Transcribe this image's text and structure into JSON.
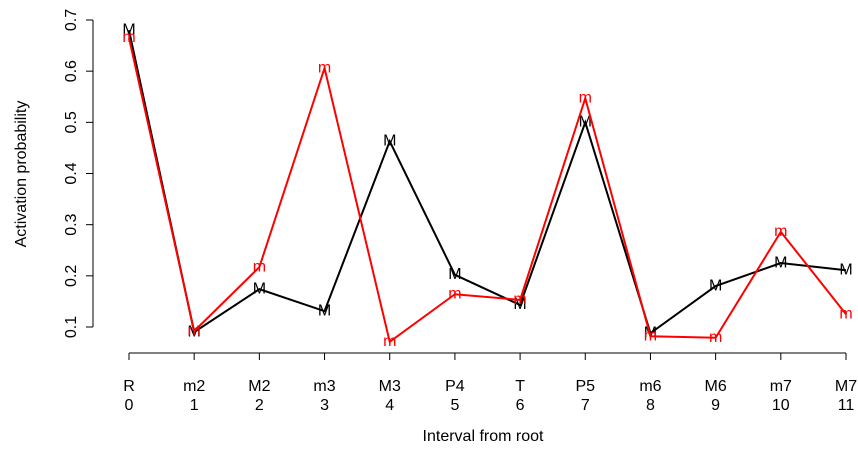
{
  "chart_data": {
    "type": "line",
    "x_label": "Interval from root",
    "y_label": "Activation probability",
    "categories": [
      "R",
      "m2",
      "M2",
      "m3",
      "M3",
      "P4",
      "T",
      "P5",
      "m6",
      "M6",
      "m7",
      "M7"
    ],
    "x": [
      0,
      1,
      2,
      3,
      4,
      5,
      6,
      7,
      8,
      9,
      10,
      11
    ],
    "xlim": [
      0,
      11
    ],
    "xticks": [
      0,
      1,
      2,
      3,
      4,
      5,
      6,
      7,
      8,
      9,
      10,
      11
    ],
    "ylim": [
      0.1,
      0.7
    ],
    "yticks": [
      0.1,
      0.2,
      0.3,
      0.4,
      0.5,
      0.6,
      0.7
    ],
    "series": [
      {
        "marker": "M",
        "color": "#000000",
        "values": [
          0.68,
          0.09,
          0.174,
          0.131,
          0.463,
          0.202,
          0.143,
          0.5,
          0.088,
          0.18,
          0.225,
          0.211
        ]
      },
      {
        "marker": "m",
        "color": "#ff0000",
        "values": [
          0.665,
          0.092,
          0.217,
          0.606,
          0.071,
          0.164,
          0.153,
          0.547,
          0.082,
          0.079,
          0.286,
          0.125
        ]
      }
    ]
  }
}
